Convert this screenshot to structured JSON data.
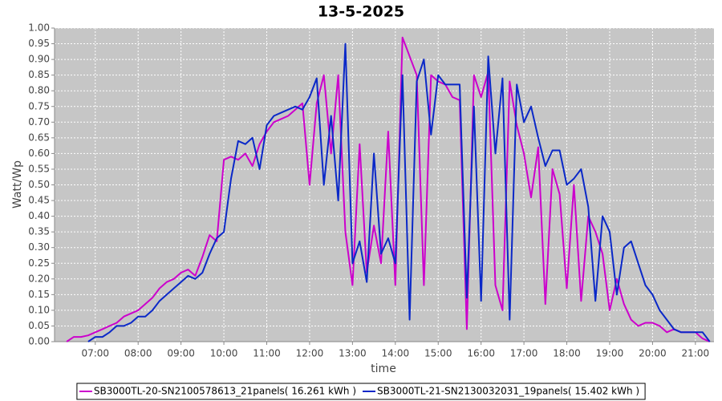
{
  "chart_data": {
    "type": "line",
    "title": "13-5-2025",
    "x_label": "time",
    "y_label": "Watt/Wp",
    "x": [
      380,
      390,
      400,
      410,
      420,
      430,
      440,
      450,
      460,
      470,
      480,
      490,
      500,
      510,
      520,
      530,
      540,
      550,
      560,
      570,
      580,
      590,
      600,
      610,
      620,
      630,
      640,
      650,
      660,
      670,
      680,
      690,
      700,
      710,
      720,
      730,
      740,
      750,
      760,
      770,
      780,
      790,
      800,
      810,
      820,
      830,
      840,
      850,
      860,
      870,
      880,
      890,
      900,
      910,
      920,
      930,
      940,
      950,
      960,
      970,
      980,
      990,
      1000,
      1010,
      1020,
      1030,
      1040,
      1050,
      1060,
      1070,
      1080,
      1090,
      1100,
      1110,
      1120,
      1130,
      1140,
      1150,
      1160,
      1170,
      1180,
      1190,
      1200,
      1210,
      1220,
      1230,
      1240,
      1250,
      1260,
      1270,
      1280
    ],
    "series": [
      {
        "name": "SB3000TL-20-SN2100578613_21panels( 16.261 kWh )",
        "color": "#cc00cc",
        "values": [
          0.0,
          0.015,
          0.015,
          0.02,
          0.03,
          0.04,
          0.05,
          0.06,
          0.08,
          0.09,
          0.1,
          0.12,
          0.14,
          0.17,
          0.19,
          0.2,
          0.22,
          0.23,
          0.21,
          0.27,
          0.34,
          0.32,
          0.58,
          0.59,
          0.58,
          0.6,
          0.56,
          0.63,
          0.67,
          0.7,
          0.71,
          0.72,
          0.74,
          0.76,
          0.5,
          0.76,
          0.85,
          0.6,
          0.85,
          0.35,
          0.18,
          0.63,
          0.22,
          0.37,
          0.25,
          0.67,
          0.18,
          0.97,
          0.91,
          0.85,
          0.18,
          0.85,
          0.83,
          0.82,
          0.78,
          0.77,
          0.04,
          0.85,
          0.78,
          0.86,
          0.18,
          0.1,
          0.83,
          0.69,
          0.6,
          0.46,
          0.62,
          0.12,
          0.55,
          0.47,
          0.17,
          0.5,
          0.13,
          0.4,
          0.35,
          0.28,
          0.1,
          0.2,
          0.12,
          0.07,
          0.05,
          0.06,
          0.06,
          0.05,
          0.03,
          0.04,
          0.03,
          0.03,
          0.03,
          0.01,
          0.0
        ]
      },
      {
        "name": "SB3000TL-21-SN2130032031_19panels( 15.402 kWh )",
        "color": "#0a28c8",
        "values": [
          null,
          null,
          null,
          0.0,
          0.015,
          0.015,
          0.03,
          0.05,
          0.05,
          0.06,
          0.08,
          0.08,
          0.1,
          0.13,
          0.15,
          0.17,
          0.19,
          0.21,
          0.2,
          0.22,
          0.28,
          0.33,
          0.35,
          0.52,
          0.64,
          0.63,
          0.65,
          0.55,
          0.69,
          0.72,
          0.73,
          0.74,
          0.75,
          0.74,
          0.78,
          0.84,
          0.5,
          0.72,
          0.45,
          0.95,
          0.25,
          0.32,
          0.19,
          0.6,
          0.28,
          0.33,
          0.25,
          0.85,
          0.07,
          0.83,
          0.9,
          0.66,
          0.85,
          0.82,
          0.82,
          0.82,
          0.14,
          0.75,
          0.13,
          0.91,
          0.6,
          0.84,
          0.07,
          0.82,
          0.7,
          0.75,
          0.65,
          0.56,
          0.61,
          0.61,
          0.5,
          0.52,
          0.55,
          0.43,
          0.13,
          0.4,
          0.35,
          0.15,
          0.3,
          0.32,
          0.25,
          0.18,
          0.15,
          0.1,
          0.07,
          0.04,
          0.03,
          0.03,
          0.03,
          0.03,
          0.0
        ]
      }
    ],
    "xlim": [
      363,
      1286
    ],
    "xticks": [
      {
        "value": 420,
        "label": "07:00"
      },
      {
        "value": 480,
        "label": "08:00"
      },
      {
        "value": 540,
        "label": "09:00"
      },
      {
        "value": 600,
        "label": "10:00"
      },
      {
        "value": 660,
        "label": "11:00"
      },
      {
        "value": 720,
        "label": "12:00"
      },
      {
        "value": 780,
        "label": "13:00"
      },
      {
        "value": 840,
        "label": "14:00"
      },
      {
        "value": 900,
        "label": "15:00"
      },
      {
        "value": 960,
        "label": "16:00"
      },
      {
        "value": 1020,
        "label": "17:00"
      },
      {
        "value": 1080,
        "label": "18:00"
      },
      {
        "value": 1140,
        "label": "19:00"
      },
      {
        "value": 1200,
        "label": "20:00"
      },
      {
        "value": 1260,
        "label": "21:00"
      }
    ],
    "ylim": [
      0,
      1
    ],
    "yticks": [
      {
        "value": 0,
        "label": "0.00"
      },
      {
        "value": 0.05,
        "label": "0.05"
      },
      {
        "value": 0.1,
        "label": "0.10"
      },
      {
        "value": 0.15,
        "label": "0.15"
      },
      {
        "value": 0.2,
        "label": "0.20"
      },
      {
        "value": 0.25,
        "label": "0.25"
      },
      {
        "value": 0.3,
        "label": "0.30"
      },
      {
        "value": 0.35,
        "label": "0.35"
      },
      {
        "value": 0.4,
        "label": "0.40"
      },
      {
        "value": 0.45,
        "label": "0.45"
      },
      {
        "value": 0.5,
        "label": "0.50"
      },
      {
        "value": 0.55,
        "label": "0.55"
      },
      {
        "value": 0.6,
        "label": "0.60"
      },
      {
        "value": 0.65,
        "label": "0.65"
      },
      {
        "value": 0.7,
        "label": "0.70"
      },
      {
        "value": 0.75,
        "label": "0.75"
      },
      {
        "value": 0.8,
        "label": "0.80"
      },
      {
        "value": 0.85,
        "label": "0.85"
      },
      {
        "value": 0.9,
        "label": "0.90"
      },
      {
        "value": 0.95,
        "label": "0.95"
      },
      {
        "value": 1,
        "label": "1.00"
      }
    ],
    "grid": true,
    "legend": "bottom"
  }
}
